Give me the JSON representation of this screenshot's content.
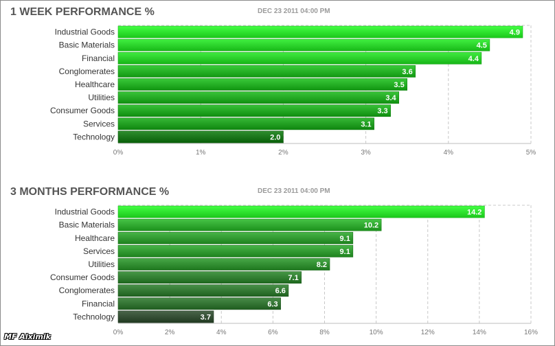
{
  "watermark": "MF Alximik",
  "chart_data": [
    {
      "type": "bar",
      "orientation": "horizontal",
      "title": "1 WEEK PERFORMANCE %",
      "date": "DEC 23 2011 04:00 PM",
      "categories": [
        "Industrial Goods",
        "Basic Materials",
        "Financial",
        "Conglomerates",
        "Healthcare",
        "Utilities",
        "Consumer Goods",
        "Services",
        "Technology"
      ],
      "values": [
        4.9,
        4.5,
        4.4,
        3.6,
        3.5,
        3.4,
        3.3,
        3.1,
        2.0
      ],
      "value_labels": [
        "4.9",
        "4.5",
        "4.4",
        "3.6",
        "3.5",
        "3.4",
        "3.3",
        "3.1",
        "2.0"
      ],
      "xlim": [
        0,
        5
      ],
      "ticks": [
        0,
        1,
        2,
        3,
        4,
        5
      ],
      "tick_labels": [
        "0%",
        "1%",
        "2%",
        "3%",
        "4%",
        "5%"
      ],
      "grid": true,
      "bar_color": "#13e313",
      "colors": {
        "light": "#22ff22",
        "dark": "#0a7a0a"
      }
    },
    {
      "type": "bar",
      "orientation": "horizontal",
      "title": "3 MONTHS PERFORMANCE %",
      "date": "DEC 23 2011 04:00 PM",
      "categories": [
        "Industrial Goods",
        "Basic Materials",
        "Healthcare",
        "Services",
        "Utilities",
        "Consumer Goods",
        "Conglomerates",
        "Financial",
        "Technology"
      ],
      "values": [
        14.2,
        10.2,
        9.1,
        9.1,
        8.2,
        7.1,
        6.6,
        6.3,
        3.7
      ],
      "value_labels": [
        "14.2",
        "10.2",
        "9.1",
        "9.1",
        "8.2",
        "7.1",
        "6.6",
        "6.3",
        "3.7"
      ],
      "xlim": [
        0,
        16
      ],
      "ticks": [
        0,
        2,
        4,
        6,
        8,
        10,
        12,
        14,
        16
      ],
      "tick_labels": [
        "0%",
        "2%",
        "4%",
        "6%",
        "8%",
        "10%",
        "12%",
        "14%",
        "16%"
      ],
      "grid": true,
      "bar_color": "#13e313",
      "colors": {
        "light": "#22ff22",
        "dark": "#2a4a2a"
      }
    }
  ]
}
